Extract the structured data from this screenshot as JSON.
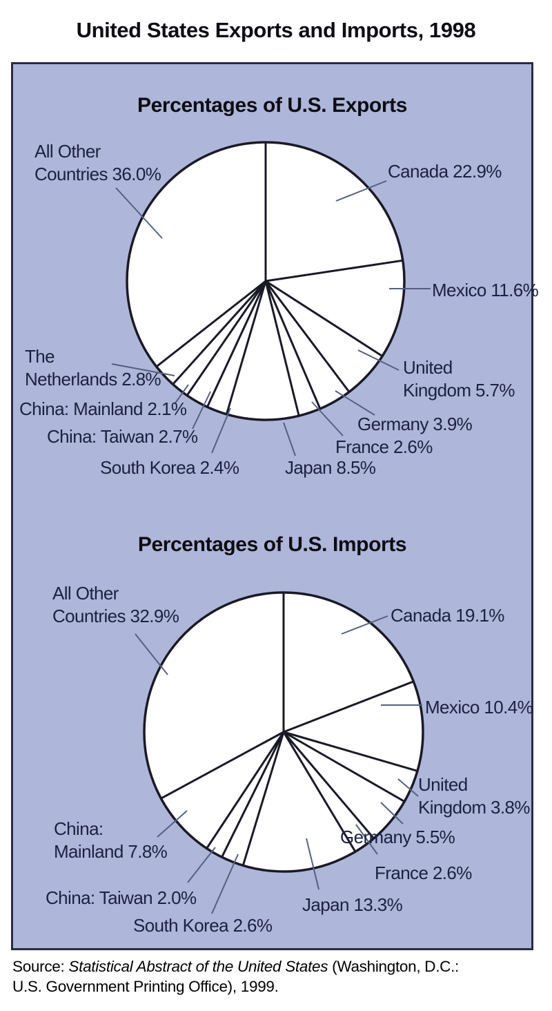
{
  "title": "United States Exports and Imports, 1998",
  "source": {
    "prefix": "Source: ",
    "italic": "Statistical Abstract of the United States",
    "rest": " (Washington, D.C.:\nU.S. Government Printing Office), 1999."
  },
  "colors": {
    "panel_bg": "#aeb6da",
    "panel_border": "#2b2b45",
    "pie_fill": "#ffffff",
    "pie_stroke": "#1a1a26",
    "leader_line": "#556080",
    "label_ink": "#1b2140",
    "title_ink": "#0d0d12"
  },
  "chart_data": [
    {
      "type": "pie",
      "title": "Percentages of U.S. Exports",
      "start_angle_deg": 0,
      "direction": "clockwise",
      "slices": [
        {
          "label": "Canada",
          "value": 22.9,
          "text": "Canada 22.9%"
        },
        {
          "label": "Mexico",
          "value": 11.6,
          "text": "Mexico 11.6%"
        },
        {
          "label": "United Kingdom",
          "value": 5.7,
          "text": "United\nKingdom 5.7%"
        },
        {
          "label": "Germany",
          "value": 3.9,
          "text": "Germany 3.9%"
        },
        {
          "label": "France",
          "value": 2.6,
          "text": "France 2.6%"
        },
        {
          "label": "Japan",
          "value": 8.5,
          "text": "Japan 8.5%"
        },
        {
          "label": "South Korea",
          "value": 2.4,
          "text": "South Korea 2.4%"
        },
        {
          "label": "China: Taiwan",
          "value": 2.7,
          "text": "China: Taiwan 2.7%"
        },
        {
          "label": "China: Mainland",
          "value": 2.1,
          "text": "China: Mainland 2.1%"
        },
        {
          "label": "The Netherlands",
          "value": 2.8,
          "text": "The\nNetherlands 2.8%"
        },
        {
          "label": "All Other Countries",
          "value": 36.0,
          "text": "All Other\nCountries 36.0%"
        }
      ]
    },
    {
      "type": "pie",
      "title": "Percentages of U.S. Imports",
      "start_angle_deg": 0,
      "direction": "clockwise",
      "slices": [
        {
          "label": "Canada",
          "value": 19.1,
          "text": "Canada 19.1%"
        },
        {
          "label": "Mexico",
          "value": 10.4,
          "text": "Mexico 10.4%"
        },
        {
          "label": "United Kingdom",
          "value": 3.8,
          "text": "United\nKingdom 3.8%"
        },
        {
          "label": "Germany",
          "value": 5.5,
          "text": "Germany 5.5%"
        },
        {
          "label": "France",
          "value": 2.6,
          "text": "France 2.6%"
        },
        {
          "label": "Japan",
          "value": 13.3,
          "text": "Japan 13.3%"
        },
        {
          "label": "South Korea",
          "value": 2.6,
          "text": "South Korea 2.6%"
        },
        {
          "label": "China: Taiwan",
          "value": 2.0,
          "text": "China: Taiwan 2.0%"
        },
        {
          "label": "China: Mainland",
          "value": 7.8,
          "text": "China:\nMainland 7.8%"
        },
        {
          "label": "All Other Countries",
          "value": 32.9,
          "text": "All Other\nCountries 32.9%"
        }
      ]
    }
  ]
}
